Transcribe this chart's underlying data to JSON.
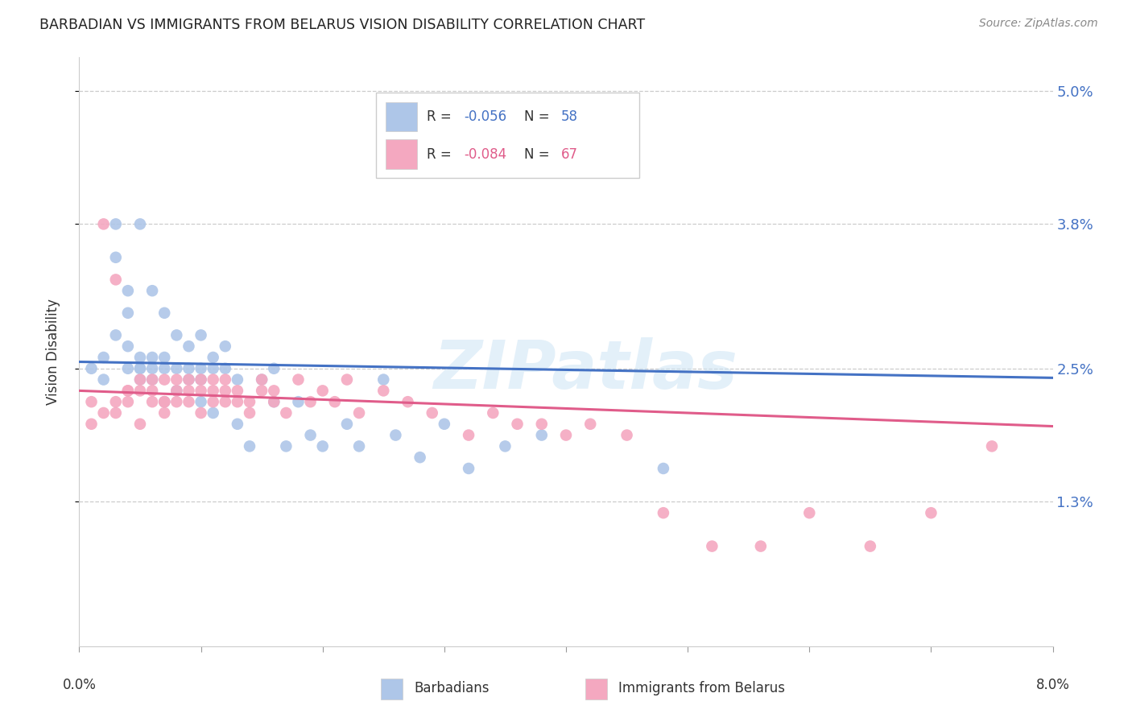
{
  "title": "BARBADIAN VS IMMIGRANTS FROM BELARUS VISION DISABILITY CORRELATION CHART",
  "source": "Source: ZipAtlas.com",
  "ylabel": "Vision Disability",
  "xlim": [
    0.0,
    0.08
  ],
  "ylim": [
    0.0,
    0.053
  ],
  "ytick_vals": [
    0.013,
    0.025,
    0.038,
    0.05
  ],
  "ytick_labels": [
    "1.3%",
    "2.5%",
    "3.8%",
    "5.0%"
  ],
  "blue_line_color": "#4472c4",
  "pink_line_color": "#e05c8a",
  "scatter_blue_color": "#aec6e8",
  "scatter_pink_color": "#f4a8c0",
  "watermark": "ZIPatlas",
  "legend_R1": "-0.056",
  "legend_N1": "58",
  "legend_R2": "-0.084",
  "legend_N2": "67",
  "blue_text_color": "#4472c4",
  "pink_text_color": "#e05c8a",
  "barbadians_x": [
    0.001,
    0.002,
    0.002,
    0.003,
    0.003,
    0.003,
    0.004,
    0.004,
    0.004,
    0.004,
    0.005,
    0.005,
    0.005,
    0.005,
    0.005,
    0.006,
    0.006,
    0.006,
    0.006,
    0.007,
    0.007,
    0.007,
    0.007,
    0.008,
    0.008,
    0.008,
    0.009,
    0.009,
    0.009,
    0.01,
    0.01,
    0.01,
    0.01,
    0.011,
    0.011,
    0.011,
    0.012,
    0.012,
    0.013,
    0.013,
    0.014,
    0.015,
    0.016,
    0.016,
    0.017,
    0.018,
    0.019,
    0.02,
    0.022,
    0.023,
    0.025,
    0.026,
    0.028,
    0.03,
    0.032,
    0.035,
    0.038,
    0.048
  ],
  "barbadians_y": [
    0.025,
    0.024,
    0.026,
    0.035,
    0.038,
    0.028,
    0.027,
    0.032,
    0.025,
    0.03,
    0.024,
    0.025,
    0.026,
    0.025,
    0.038,
    0.032,
    0.025,
    0.024,
    0.026,
    0.022,
    0.025,
    0.026,
    0.03,
    0.023,
    0.025,
    0.028,
    0.025,
    0.027,
    0.024,
    0.022,
    0.025,
    0.028,
    0.024,
    0.021,
    0.025,
    0.026,
    0.025,
    0.027,
    0.02,
    0.024,
    0.018,
    0.024,
    0.022,
    0.025,
    0.018,
    0.022,
    0.019,
    0.018,
    0.02,
    0.018,
    0.024,
    0.019,
    0.017,
    0.02,
    0.016,
    0.018,
    0.019,
    0.016
  ],
  "belarus_x": [
    0.001,
    0.001,
    0.002,
    0.002,
    0.003,
    0.003,
    0.003,
    0.004,
    0.004,
    0.004,
    0.005,
    0.005,
    0.005,
    0.006,
    0.006,
    0.006,
    0.007,
    0.007,
    0.007,
    0.007,
    0.008,
    0.008,
    0.008,
    0.009,
    0.009,
    0.009,
    0.01,
    0.01,
    0.01,
    0.011,
    0.011,
    0.011,
    0.012,
    0.012,
    0.012,
    0.013,
    0.013,
    0.014,
    0.014,
    0.015,
    0.015,
    0.016,
    0.016,
    0.017,
    0.018,
    0.019,
    0.02,
    0.021,
    0.022,
    0.023,
    0.025,
    0.027,
    0.029,
    0.032,
    0.034,
    0.036,
    0.038,
    0.04,
    0.042,
    0.045,
    0.048,
    0.052,
    0.056,
    0.06,
    0.065,
    0.07,
    0.075
  ],
  "belarus_y": [
    0.022,
    0.02,
    0.038,
    0.021,
    0.033,
    0.021,
    0.022,
    0.023,
    0.022,
    0.023,
    0.02,
    0.023,
    0.024,
    0.022,
    0.024,
    0.023,
    0.022,
    0.024,
    0.021,
    0.022,
    0.022,
    0.023,
    0.024,
    0.022,
    0.023,
    0.024,
    0.021,
    0.023,
    0.024,
    0.022,
    0.023,
    0.024,
    0.022,
    0.024,
    0.023,
    0.022,
    0.023,
    0.021,
    0.022,
    0.023,
    0.024,
    0.022,
    0.023,
    0.021,
    0.024,
    0.022,
    0.023,
    0.022,
    0.024,
    0.021,
    0.023,
    0.022,
    0.021,
    0.019,
    0.021,
    0.02,
    0.02,
    0.019,
    0.02,
    0.019,
    0.012,
    0.009,
    0.009,
    0.012,
    0.009,
    0.012,
    0.018
  ]
}
